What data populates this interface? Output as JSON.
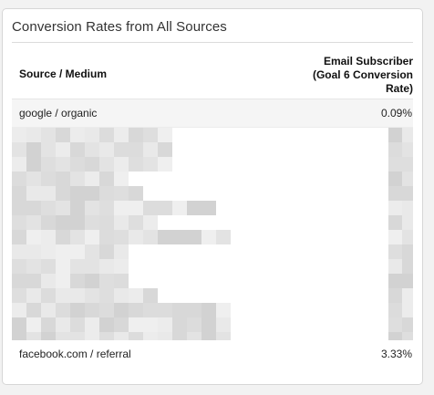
{
  "widget": {
    "title": "Conversion Rates from All Sources"
  },
  "table": {
    "col_source": "Source / Medium",
    "col_metric_line1": "Email Subscriber",
    "col_metric_line2": "(Goal 6 Conversion",
    "col_metric_line3": "Rate)",
    "first_row": {
      "source": "google / organic",
      "rate": "0.09%"
    },
    "last_row": {
      "source": "facebook.com / referral",
      "rate": "3.33%"
    },
    "redacted_rows_count_visible": 8
  },
  "colors": {
    "card_border": "#d6d6d6",
    "page_bg": "#f2f2f2",
    "shade_row": "#f5f5f5"
  }
}
